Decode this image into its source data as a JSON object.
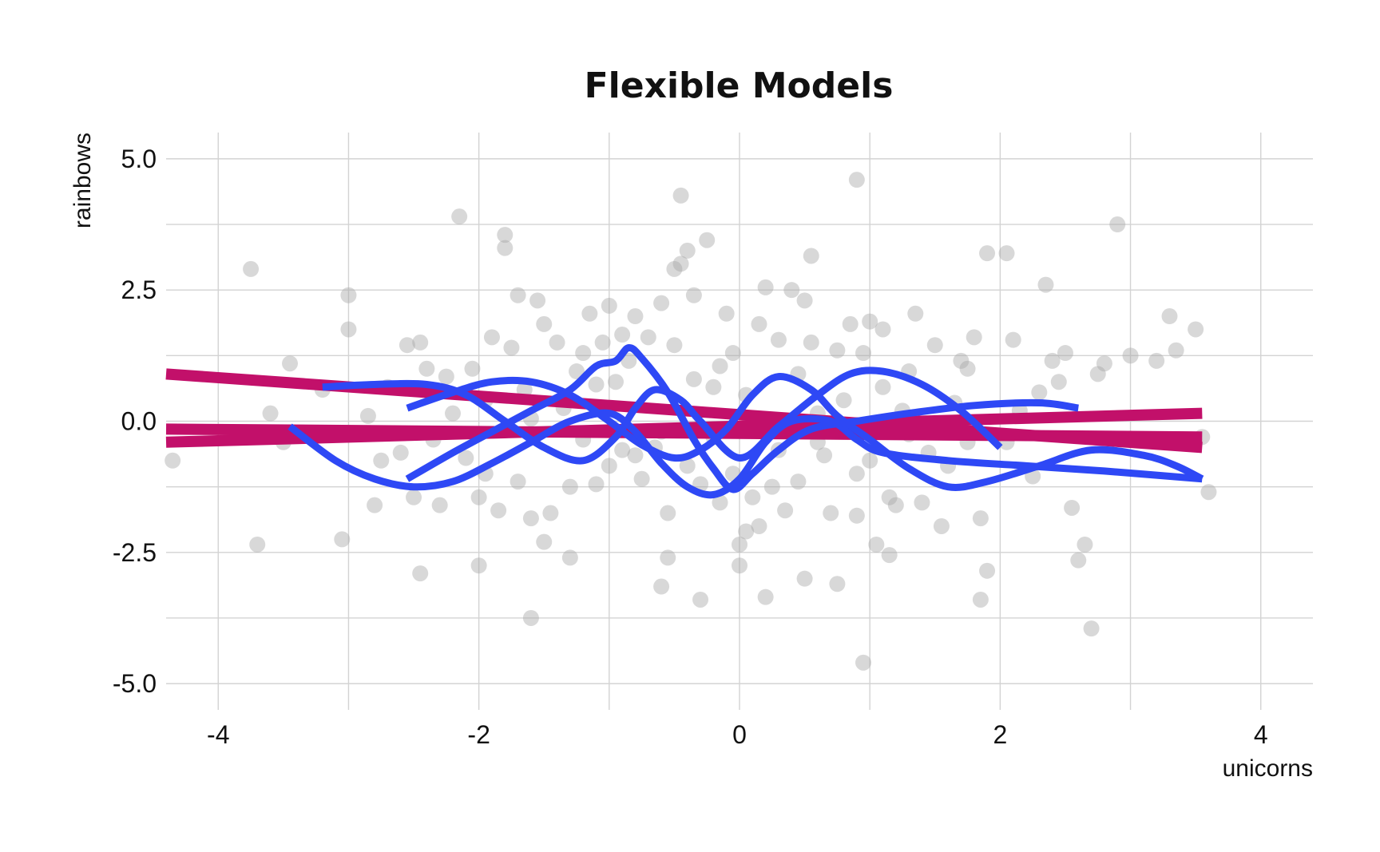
{
  "chart_data": {
    "type": "scatter",
    "title": "Flexible Models",
    "xlabel": "unicorns",
    "ylabel": "rainbows",
    "xlim": [
      -4.4,
      4.4
    ],
    "ylim": [
      -5.5,
      5.5
    ],
    "x_ticks": [
      -4,
      -2,
      0,
      2,
      4
    ],
    "x_tick_labels": [
      "-4",
      "-2",
      "0",
      "2",
      "4"
    ],
    "y_ticks": [
      -5,
      -2.5,
      0,
      2.5,
      5
    ],
    "y_tick_labels": [
      "-5.0",
      "-2.5",
      "0.0",
      "2.5",
      "5.0"
    ],
    "grid": true,
    "legend": "none",
    "colors": {
      "points": "#a9a9a9",
      "linear_models": "#c2106a",
      "flexible_models": "#2e48f5",
      "grid": "#d3d3d3"
    },
    "points": [
      [
        -4.35,
        -0.75
      ],
      [
        -3.75,
        2.9
      ],
      [
        -3.7,
        -2.35
      ],
      [
        -3.6,
        0.15
      ],
      [
        -3.45,
        1.1
      ],
      [
        -3.2,
        0.6
      ],
      [
        -3.05,
        -2.25
      ],
      [
        -3.0,
        2.4
      ],
      [
        -3.0,
        1.75
      ],
      [
        -2.8,
        -1.6
      ],
      [
        -2.75,
        -0.75
      ],
      [
        -2.7,
        0.65
      ],
      [
        -2.6,
        -0.6
      ],
      [
        -2.55,
        1.45
      ],
      [
        -2.5,
        -1.45
      ],
      [
        -2.45,
        1.5
      ],
      [
        -2.45,
        -2.9
      ],
      [
        -2.4,
        1.0
      ],
      [
        -2.3,
        -1.6
      ],
      [
        -2.25,
        0.85
      ],
      [
        -2.2,
        0.15
      ],
      [
        -2.1,
        -0.7
      ],
      [
        -2.15,
        3.9
      ],
      [
        -2.05,
        1.0
      ],
      [
        -2.0,
        -1.45
      ],
      [
        -2.0,
        -2.75
      ],
      [
        -1.95,
        -1.0
      ],
      [
        -1.9,
        1.6
      ],
      [
        -1.85,
        -1.7
      ],
      [
        -1.8,
        3.55
      ],
      [
        -1.8,
        3.3
      ],
      [
        -1.75,
        1.4
      ],
      [
        -1.7,
        -1.15
      ],
      [
        -1.7,
        2.4
      ],
      [
        -1.65,
        0.6
      ],
      [
        -1.6,
        -1.85
      ],
      [
        -1.6,
        -3.75
      ],
      [
        -1.55,
        2.3
      ],
      [
        -1.5,
        1.85
      ],
      [
        -1.5,
        -2.3
      ],
      [
        -1.45,
        -1.75
      ],
      [
        -1.4,
        1.5
      ],
      [
        -1.35,
        0.25
      ],
      [
        -1.3,
        -1.25
      ],
      [
        -1.3,
        -2.6
      ],
      [
        -1.25,
        0.95
      ],
      [
        -1.2,
        1.3
      ],
      [
        -1.15,
        2.05
      ],
      [
        -1.1,
        -1.2
      ],
      [
        -1.1,
        0.7
      ],
      [
        -1.05,
        1.5
      ],
      [
        -1.0,
        -0.85
      ],
      [
        -1.0,
        2.2
      ],
      [
        -0.95,
        0.75
      ],
      [
        -0.9,
        1.65
      ],
      [
        -0.85,
        1.15
      ],
      [
        -0.8,
        -0.65
      ],
      [
        -0.8,
        2.0
      ],
      [
        -0.75,
        -1.1
      ],
      [
        -0.7,
        1.6
      ],
      [
        -0.65,
        -0.5
      ],
      [
        -0.6,
        2.25
      ],
      [
        -0.6,
        -3.15
      ],
      [
        -0.55,
        -2.6
      ],
      [
        -0.55,
        -1.75
      ],
      [
        -0.5,
        1.45
      ],
      [
        -0.5,
        2.9
      ],
      [
        -0.45,
        4.3
      ],
      [
        -0.45,
        3.0
      ],
      [
        -0.4,
        3.25
      ],
      [
        -0.4,
        -0.85
      ],
      [
        -0.35,
        2.4
      ],
      [
        -0.35,
        0.8
      ],
      [
        -0.3,
        -1.2
      ],
      [
        -0.3,
        -3.4
      ],
      [
        -0.25,
        3.45
      ],
      [
        -0.2,
        -0.3
      ],
      [
        -0.15,
        1.05
      ],
      [
        -0.15,
        -1.55
      ],
      [
        -0.1,
        2.05
      ],
      [
        -0.05,
        1.3
      ],
      [
        -0.05,
        -1.0
      ],
      [
        0.0,
        -2.75
      ],
      [
        0.0,
        -2.35
      ],
      [
        0.05,
        -2.1
      ],
      [
        0.05,
        0.5
      ],
      [
        0.1,
        -1.45
      ],
      [
        0.15,
        1.85
      ],
      [
        0.15,
        -2.0
      ],
      [
        0.2,
        2.55
      ],
      [
        0.2,
        -3.35
      ],
      [
        0.25,
        -1.25
      ],
      [
        0.3,
        1.55
      ],
      [
        0.35,
        -1.7
      ],
      [
        0.4,
        2.5
      ],
      [
        0.45,
        0.9
      ],
      [
        0.45,
        -1.15
      ],
      [
        0.5,
        2.3
      ],
      [
        0.5,
        -3.0
      ],
      [
        0.55,
        1.5
      ],
      [
        0.55,
        3.15
      ],
      [
        0.6,
        -0.4
      ],
      [
        0.65,
        -0.65
      ],
      [
        0.7,
        -1.75
      ],
      [
        0.75,
        1.35
      ],
      [
        0.75,
        -3.1
      ],
      [
        0.8,
        0.4
      ],
      [
        0.85,
        1.85
      ],
      [
        0.9,
        4.6
      ],
      [
        0.9,
        -1.8
      ],
      [
        0.95,
        -4.6
      ],
      [
        0.95,
        1.3
      ],
      [
        1.0,
        -0.75
      ],
      [
        1.0,
        1.9
      ],
      [
        1.05,
        -2.35
      ],
      [
        1.1,
        1.75
      ],
      [
        1.1,
        0.65
      ],
      [
        1.15,
        -2.55
      ],
      [
        1.15,
        -1.45
      ],
      [
        1.2,
        -1.6
      ],
      [
        1.25,
        0.2
      ],
      [
        1.3,
        0.95
      ],
      [
        1.35,
        2.05
      ],
      [
        1.4,
        -1.55
      ],
      [
        1.45,
        -0.6
      ],
      [
        1.5,
        1.45
      ],
      [
        1.55,
        -2.0
      ],
      [
        1.6,
        -0.85
      ],
      [
        1.65,
        0.35
      ],
      [
        1.7,
        1.15
      ],
      [
        1.75,
        1.0
      ],
      [
        1.8,
        1.6
      ],
      [
        1.85,
        -1.85
      ],
      [
        1.85,
        -3.4
      ],
      [
        1.9,
        3.2
      ],
      [
        1.9,
        -2.85
      ],
      [
        2.05,
        3.2
      ],
      [
        2.05,
        -0.4
      ],
      [
        2.1,
        1.55
      ],
      [
        2.15,
        0.2
      ],
      [
        2.25,
        -1.05
      ],
      [
        2.3,
        0.55
      ],
      [
        2.35,
        2.6
      ],
      [
        2.4,
        1.15
      ],
      [
        2.45,
        0.75
      ],
      [
        2.5,
        1.3
      ],
      [
        2.55,
        -1.65
      ],
      [
        2.6,
        -2.65
      ],
      [
        2.65,
        -2.35
      ],
      [
        2.7,
        -3.95
      ],
      [
        2.75,
        0.9
      ],
      [
        2.8,
        1.1
      ],
      [
        2.9,
        3.75
      ],
      [
        3.0,
        1.25
      ],
      [
        3.2,
        1.15
      ],
      [
        3.3,
        2.0
      ],
      [
        3.35,
        1.35
      ],
      [
        3.5,
        1.75
      ],
      [
        3.55,
        -0.3
      ],
      [
        3.6,
        -1.35
      ],
      [
        -1.2,
        -0.35
      ],
      [
        -0.9,
        -0.55
      ],
      [
        -0.6,
        -0.2
      ],
      [
        0.3,
        -0.55
      ],
      [
        0.6,
        0.15
      ],
      [
        1.3,
        -0.25
      ],
      [
        -1.95,
        0.4
      ],
      [
        -2.35,
        -0.35
      ],
      [
        -1.6,
        0.05
      ],
      [
        -0.2,
        0.65
      ],
      [
        0.9,
        -1.0
      ],
      [
        1.75,
        -0.4
      ],
      [
        -3.5,
        -0.4
      ],
      [
        -2.85,
        0.1
      ]
    ],
    "series": [
      {
        "type": "linear",
        "points": [
          [
            -4.4,
            0.9
          ],
          [
            3.55,
            -0.5
          ]
        ]
      },
      {
        "type": "linear",
        "points": [
          [
            -4.4,
            -0.15
          ],
          [
            3.55,
            -0.3
          ]
        ]
      },
      {
        "type": "linear",
        "points": [
          [
            -4.4,
            -0.4
          ],
          [
            3.55,
            0.15
          ]
        ]
      },
      {
        "type": "smooth",
        "points": [
          [
            -3.2,
            0.65
          ],
          [
            -2.8,
            0.7
          ],
          [
            -2.4,
            0.7
          ],
          [
            -2.1,
            0.5
          ],
          [
            -1.8,
            0.0
          ],
          [
            -1.5,
            -0.5
          ],
          [
            -1.2,
            -0.75
          ],
          [
            -0.95,
            -0.3
          ],
          [
            -0.8,
            0.25
          ],
          [
            -0.65,
            0.6
          ],
          [
            -0.45,
            0.4
          ],
          [
            -0.3,
            0.0
          ],
          [
            0.0,
            -0.7
          ],
          [
            0.3,
            -0.1
          ],
          [
            0.6,
            0.5
          ],
          [
            0.85,
            0.9
          ],
          [
            1.1,
            0.95
          ],
          [
            1.4,
            0.7
          ],
          [
            1.7,
            0.2
          ],
          [
            2.0,
            -0.5
          ]
        ]
      },
      {
        "type": "smooth",
        "points": [
          [
            -2.55,
            0.25
          ],
          [
            -2.2,
            0.55
          ],
          [
            -1.9,
            0.75
          ],
          [
            -1.6,
            0.75
          ],
          [
            -1.3,
            0.5
          ],
          [
            -1.0,
            0.0
          ],
          [
            -0.75,
            -0.45
          ],
          [
            -0.5,
            -0.7
          ],
          [
            -0.3,
            -0.55
          ],
          [
            -0.1,
            -0.15
          ],
          [
            0.1,
            0.5
          ],
          [
            0.3,
            0.85
          ],
          [
            0.55,
            0.6
          ],
          [
            0.75,
            0.1
          ],
          [
            1.0,
            -0.35
          ],
          [
            1.3,
            -0.9
          ],
          [
            1.6,
            -1.25
          ],
          [
            1.9,
            -1.15
          ],
          [
            2.3,
            -0.85
          ],
          [
            2.7,
            -0.55
          ],
          [
            3.1,
            -0.65
          ],
          [
            3.35,
            -0.85
          ],
          [
            3.55,
            -1.1
          ]
        ]
      },
      {
        "type": "smooth",
        "points": [
          [
            -3.45,
            -0.1
          ],
          [
            -3.1,
            -0.75
          ],
          [
            -2.8,
            -1.1
          ],
          [
            -2.5,
            -1.25
          ],
          [
            -2.2,
            -1.15
          ],
          [
            -1.9,
            -0.8
          ],
          [
            -1.6,
            -0.4
          ],
          [
            -1.3,
            0.0
          ],
          [
            -1.0,
            0.15
          ],
          [
            -0.8,
            -0.2
          ],
          [
            -0.6,
            -0.8
          ],
          [
            -0.4,
            -1.25
          ],
          [
            -0.2,
            -1.4
          ],
          [
            0.0,
            -1.1
          ],
          [
            0.2,
            -0.4
          ],
          [
            0.4,
            0.0
          ],
          [
            0.7,
            0.0
          ],
          [
            0.9,
            -0.35
          ],
          [
            1.1,
            -0.6
          ],
          [
            1.6,
            -0.75
          ],
          [
            2.2,
            -0.85
          ],
          [
            2.8,
            -0.95
          ],
          [
            3.55,
            -1.1
          ]
        ]
      },
      {
        "type": "smooth",
        "points": [
          [
            -2.55,
            -1.1
          ],
          [
            -2.2,
            -0.6
          ],
          [
            -1.9,
            -0.2
          ],
          [
            -1.6,
            0.2
          ],
          [
            -1.3,
            0.6
          ],
          [
            -1.1,
            1.05
          ],
          [
            -0.95,
            1.15
          ],
          [
            -0.85,
            1.4
          ],
          [
            -0.75,
            1.2
          ],
          [
            -0.55,
            0.55
          ],
          [
            -0.35,
            -0.35
          ],
          [
            -0.2,
            -0.9
          ],
          [
            -0.05,
            -1.3
          ],
          [
            0.1,
            -1.0
          ],
          [
            0.3,
            -0.55
          ],
          [
            0.55,
            -0.15
          ],
          [
            0.9,
            0.0
          ],
          [
            1.3,
            0.15
          ],
          [
            1.8,
            0.3
          ],
          [
            2.3,
            0.35
          ],
          [
            2.6,
            0.25
          ]
        ]
      }
    ]
  }
}
